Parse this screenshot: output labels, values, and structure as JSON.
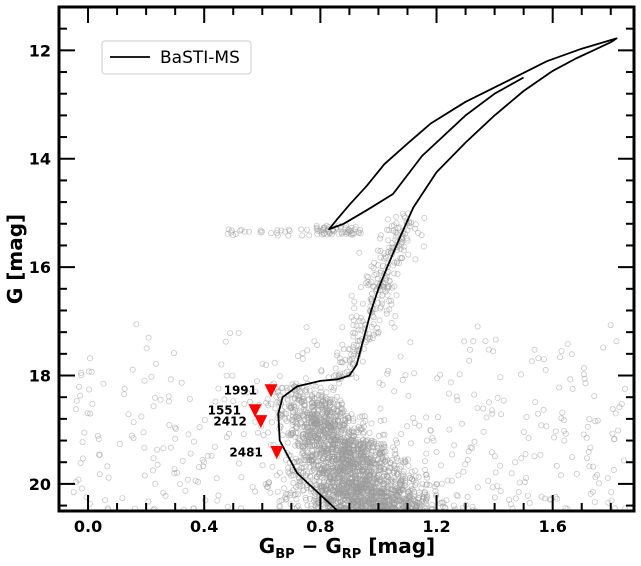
{
  "chart_data": {
    "type": "scatter",
    "title": "",
    "xlabel": "G_BP − G_RP [mag]",
    "xlabel_parts": {
      "main": "G",
      "sub1": "BP",
      "mid": " − G",
      "sub2": "RP",
      "unit": " [mag]"
    },
    "ylabel": "G [mag]",
    "xlim": [
      -0.1,
      1.88
    ],
    "ylim": [
      20.5,
      11.2
    ],
    "y_inverted": true,
    "xticks": [
      0.0,
      0.4,
      0.8,
      1.2,
      1.6
    ],
    "xtick_labels": [
      "0.0",
      "0.4",
      "0.8",
      "1.2",
      "1.6"
    ],
    "yticks": [
      12,
      14,
      16,
      18,
      20
    ],
    "ytick_labels": [
      "12",
      "14",
      "16",
      "18",
      "20"
    ],
    "grid": false,
    "legend": {
      "position": "top-left",
      "entries": [
        "BaSTI-MS"
      ]
    },
    "colors": {
      "field_stars": "#9a9a9a",
      "isochrone": "#000000",
      "highlight": "#ff0000"
    },
    "series": [
      {
        "name": "BaSTI-MS",
        "kind": "line",
        "x": [
          0.88,
          0.72,
          0.66,
          0.655,
          0.67,
          0.72,
          0.8,
          0.86,
          0.9,
          0.925,
          0.94,
          0.955,
          0.975,
          1.0,
          1.03,
          1.07,
          1.12,
          1.2,
          1.3,
          1.4,
          1.5,
          1.6,
          1.68,
          1.74,
          1.8,
          1.82,
          1.7,
          1.58,
          1.45,
          1.3,
          1.18,
          1.1,
          1.02,
          0.96,
          0.9,
          0.86,
          0.83,
          0.88,
          0.96,
          1.05,
          1.15,
          1.3,
          1.4,
          1.5
        ],
        "y": [
          20.6,
          19.8,
          19.2,
          18.7,
          18.4,
          18.2,
          18.1,
          18.07,
          18.0,
          17.8,
          17.5,
          17.2,
          16.8,
          16.4,
          16.0,
          15.5,
          14.9,
          14.25,
          13.7,
          13.2,
          12.75,
          12.38,
          12.15,
          12.0,
          11.85,
          11.78,
          11.97,
          12.2,
          12.55,
          12.95,
          13.35,
          13.72,
          14.1,
          14.5,
          14.85,
          15.1,
          15.3,
          15.2,
          14.95,
          14.65,
          13.95,
          13.2,
          12.8,
          12.5
        ]
      }
    ],
    "highlighted_stars": [
      {
        "label": "1991",
        "x": 0.63,
        "y": 18.28
      },
      {
        "label": "1551",
        "x": 0.575,
        "y": 18.65
      },
      {
        "label": "2412",
        "x": 0.595,
        "y": 18.85
      },
      {
        "label": "2481",
        "x": 0.65,
        "y": 19.42
      }
    ],
    "field_star_regions": [
      {
        "name": "main-sequence",
        "count": 2300,
        "x_center": 0.8,
        "y_range": [
          18.1,
          20.6
        ]
      },
      {
        "name": "red-giant-branch",
        "count": 260,
        "x_center": 0.95,
        "y_range": [
          15.0,
          18.1
        ]
      },
      {
        "name": "red-clump",
        "count": 55,
        "x_center": 0.86,
        "y_range": [
          15.22,
          15.4
        ]
      },
      {
        "name": "horizontal-branch",
        "count": 28,
        "x_center": 0.66,
        "y_range": [
          15.3,
          15.42
        ]
      },
      {
        "name": "field-scatter",
        "count": 420,
        "x_center": 0.9,
        "y_range": [
          17.0,
          20.5
        ]
      }
    ]
  }
}
